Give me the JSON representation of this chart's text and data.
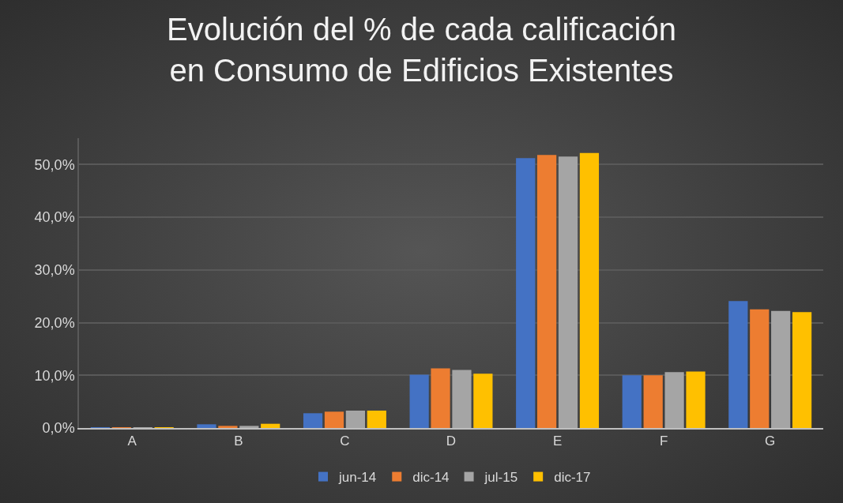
{
  "chart_data": {
    "type": "bar",
    "title": "Evolución del % de cada calificación\nen Consumo de Edificios Existentes",
    "categories": [
      "A",
      "B",
      "C",
      "D",
      "E",
      "F",
      "G"
    ],
    "series": [
      {
        "name": "jun-14",
        "color": "#4472c4",
        "values": [
          0.1,
          0.7,
          2.8,
          10.1,
          51.2,
          10.0,
          24.1
        ]
      },
      {
        "name": "dic-14",
        "color": "#ed7d31",
        "values": [
          0.1,
          0.4,
          3.1,
          11.3,
          51.8,
          10.0,
          22.5
        ]
      },
      {
        "name": "jul-15",
        "color": "#a5a5a5",
        "values": [
          0.1,
          0.4,
          3.3,
          11.0,
          51.5,
          10.6,
          22.2
        ]
      },
      {
        "name": "dic-17",
        "color": "#ffc000",
        "values": [
          0.1,
          0.8,
          3.3,
          10.3,
          52.2,
          10.7,
          22.0
        ]
      }
    ],
    "ylim": [
      0,
      55
    ],
    "yticks": [
      {
        "value": 0,
        "label": "0,0%"
      },
      {
        "value": 10,
        "label": "10,0%"
      },
      {
        "value": 20,
        "label": "20,0%"
      },
      {
        "value": 30,
        "label": "30,0%"
      },
      {
        "value": 40,
        "label": "40,0%"
      },
      {
        "value": 50,
        "label": "50,0%"
      }
    ],
    "grid": "y",
    "legend": "bottom"
  }
}
